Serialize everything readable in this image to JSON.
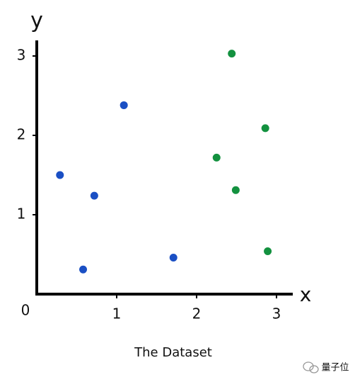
{
  "chart_data": {
    "type": "scatter",
    "title": "The Dataset",
    "x_label": "x",
    "y_label": "y",
    "origin_label": "0",
    "series": [
      {
        "color": "#1a4fc4",
        "x": [
          0.29,
          0.72,
          1.09,
          0.58,
          1.71
        ],
        "values": [
          1.5,
          1.24,
          2.38,
          0.31,
          0.46
        ]
      },
      {
        "color": "#13913f",
        "x": [
          2.44,
          2.86,
          2.25,
          2.49,
          2.89
        ],
        "values": [
          3.03,
          2.09,
          1.72,
          1.31,
          0.54
        ]
      }
    ],
    "xlim": [
      0,
      3.2
    ],
    "ylim": [
      0,
      3.2
    ],
    "xticks": [
      1,
      2,
      3
    ],
    "yticks": [
      1,
      2,
      3
    ],
    "grid": false,
    "watermark": "量子位"
  }
}
